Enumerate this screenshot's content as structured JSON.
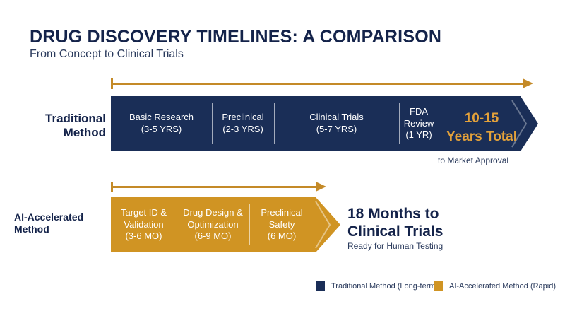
{
  "header": {
    "title": "DRUG DISCOVERY TIMELINES: A COMPARISON",
    "subtitle": "From Concept to Clinical Trials"
  },
  "colors": {
    "traditional": "#1a2e57",
    "ai": "#d09423",
    "accent_text": "#e3a13a"
  },
  "traditional": {
    "label_line1": "Traditional",
    "label_line2": "Method",
    "phases": [
      {
        "name": "Basic Research",
        "duration": "(3-5 YRS)"
      },
      {
        "name": "Preclinical",
        "duration": "(2-3 YRS)"
      },
      {
        "name": "Clinical Trials",
        "duration": "(5-7 YRS)"
      },
      {
        "name_line1": "FDA",
        "name_line2": "Review",
        "duration": "(1 YR)"
      }
    ],
    "total_line1": "10-15",
    "total_line2": "Years Total",
    "note": "to Market Approval"
  },
  "ai": {
    "label_line1": "AI-Accelerated",
    "label_line2": "Method",
    "phases": [
      {
        "name_line1": "Target ID &",
        "name_line2": "Validation",
        "duration": "(3-6 MO)"
      },
      {
        "name_line1": "Drug Design &",
        "name_line2": "Optimization",
        "duration": "(6-9 MO)"
      },
      {
        "name_line1": "Preclinical",
        "name_line2": "Safety",
        "duration": "(6 MO)"
      }
    ],
    "result_line1": "18 Months to",
    "result_line2": "Clinical Trials",
    "note": "Ready for Human Testing"
  },
  "legend": {
    "traditional": "Traditional Method (Long-term)",
    "ai": "AI-Accelerated Method (Rapid)"
  }
}
